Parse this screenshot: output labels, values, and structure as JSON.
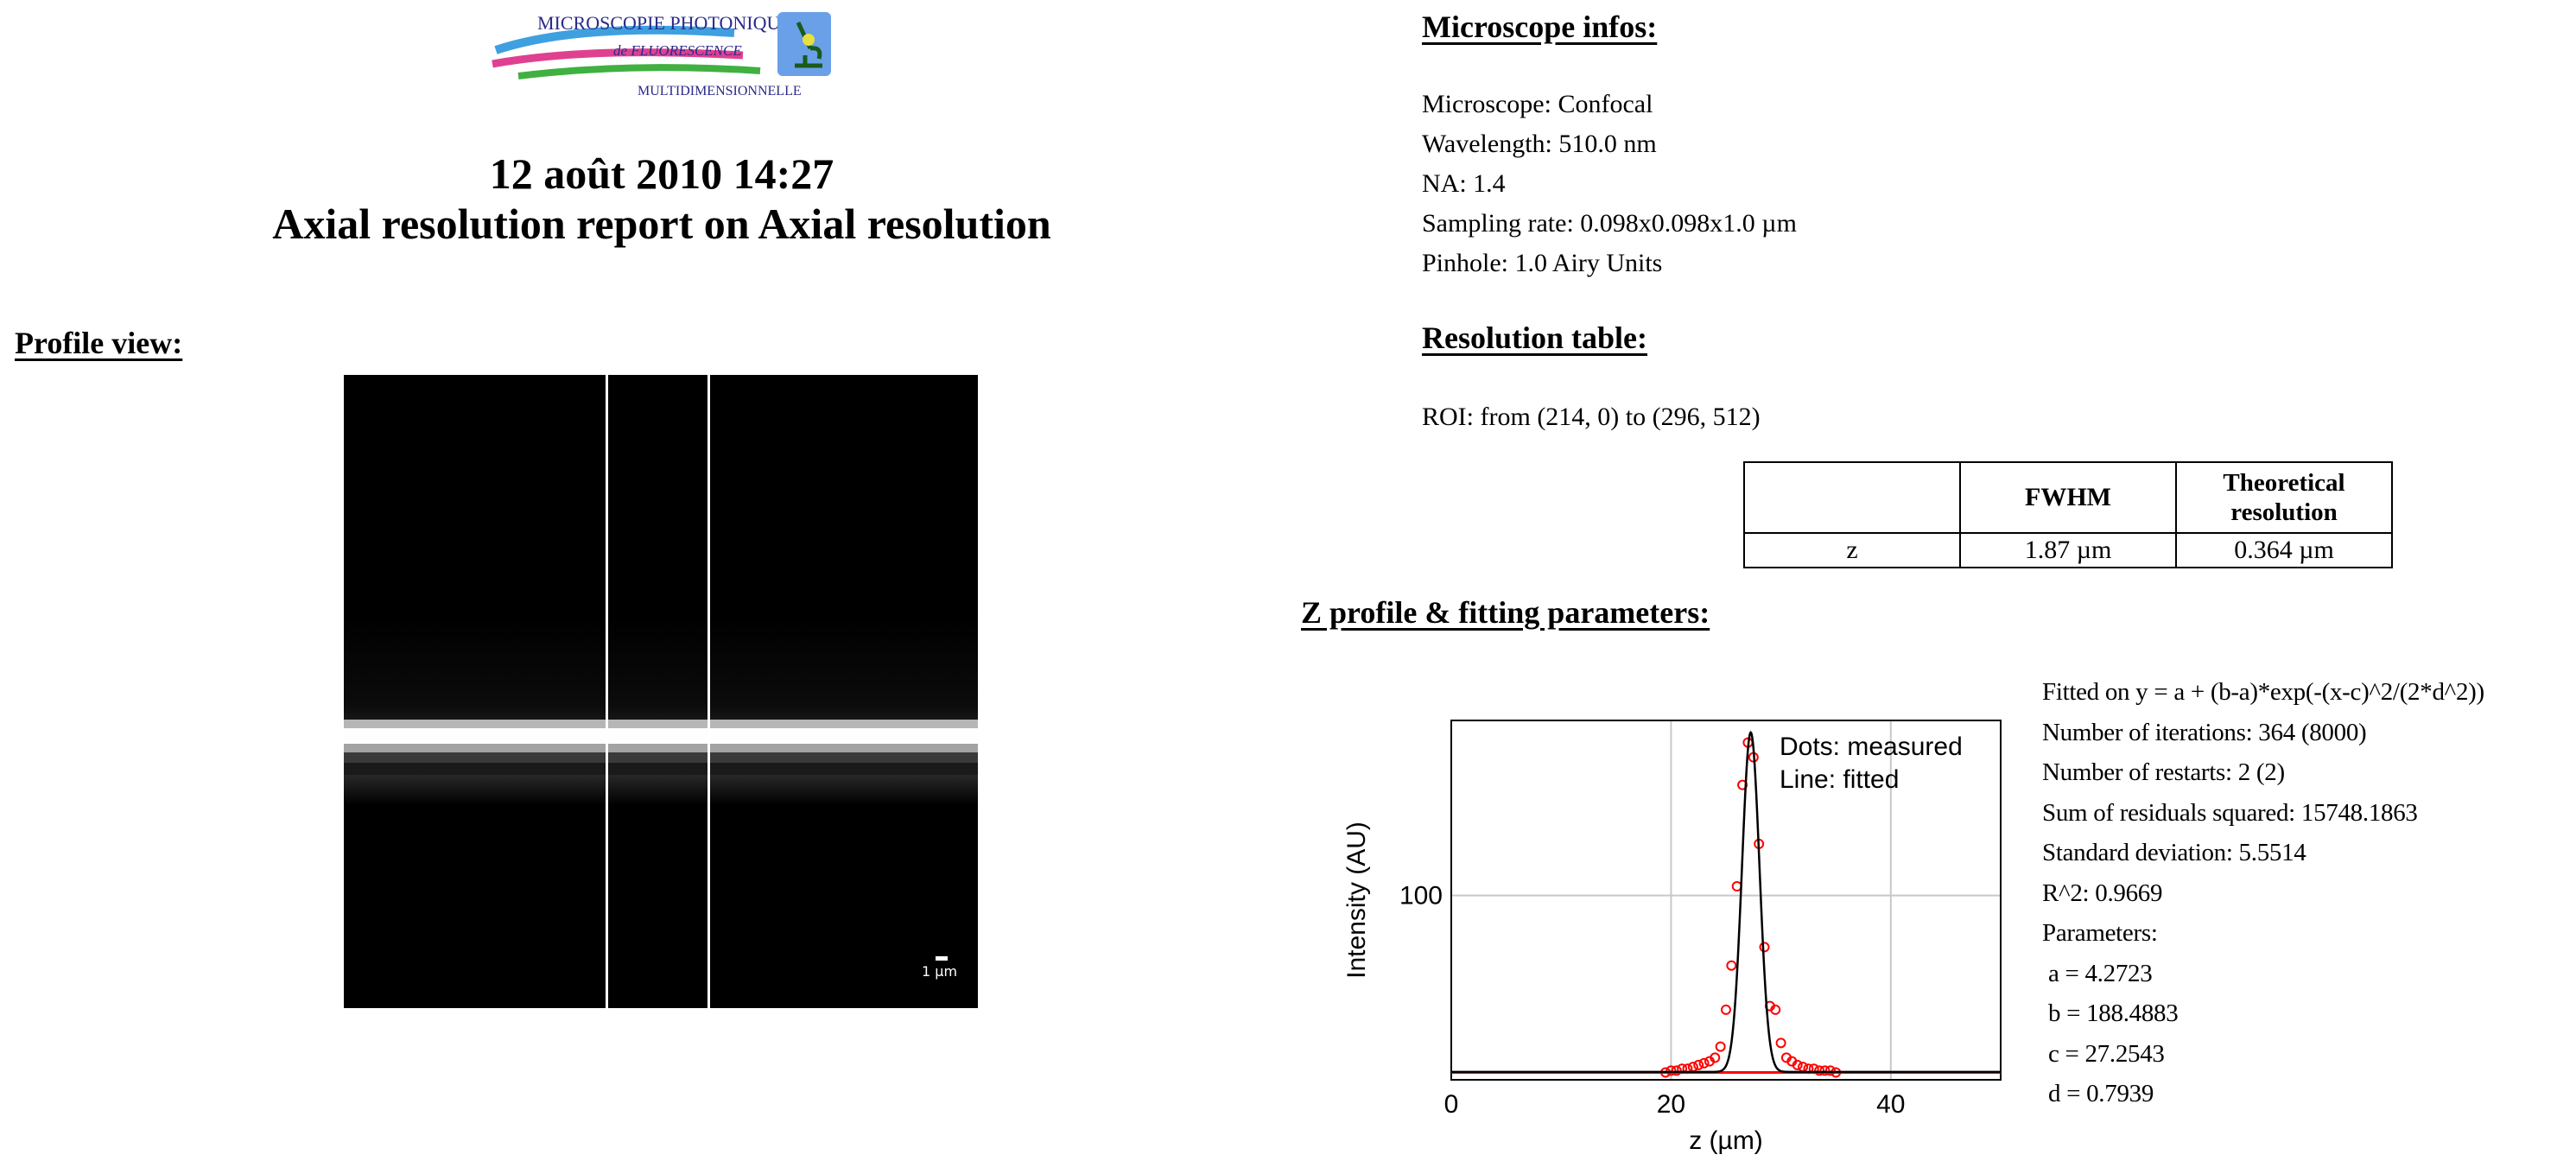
{
  "logo": {
    "line1": "MICROSCOPIE PHOTONIQUE",
    "line2": "de FLUORESCENCE",
    "line3": "MULTIDIMENSIONNELLE",
    "icon": "microscope-icon"
  },
  "report": {
    "date": "12 août 2010 14:27",
    "title": "Axial resolution report on Axial resolution"
  },
  "profile": {
    "header": "Profile view:",
    "scale_label": "1 µm"
  },
  "microscope": {
    "header": "Microscope infos:",
    "lines": [
      "Microscope: Confocal",
      "Wavelength: 510.0 nm",
      "NA: 1.4",
      "Sampling rate: 0.098x0.098x1.0 µm",
      "Pinhole: 1.0 Airy Units"
    ]
  },
  "resolution": {
    "header": "Resolution table:",
    "roi": "ROI: from (214, 0) to (296, 512)",
    "col_fwhm": "FWHM",
    "col_theo_1": "Theoretical",
    "col_theo_2": "resolution",
    "row_label": "z",
    "fwhm": "1.87 µm",
    "theoretical": "0.364 µm"
  },
  "zprofile": {
    "header": "Z profile & fitting parameters:"
  },
  "fit": {
    "lines": [
      "Fitted on y = a + (b-a)*exp(-(x-c)^2/(2*d^2))",
      "Number of iterations: 364 (8000)",
      "Number of restarts: 2 (2)",
      "Sum of residuals squared: 15748.1863",
      "Standard deviation: 5.5514",
      "R^2: 0.9669",
      "Parameters:",
      " a = 4.2723",
      " b = 188.4883",
      " c = 27.2543",
      " d = 0.7939"
    ]
  },
  "chart_data": {
    "type": "scatter",
    "xlabel": "z (µm)",
    "ylabel": "Intensity (AU)",
    "xlim": [
      0,
      50
    ],
    "ylim": [
      0,
      195
    ],
    "xticks": [
      0,
      20,
      40
    ],
    "yticks": [
      100
    ],
    "grid": true,
    "legend": [
      "Dots: measured",
      "Line: fitted"
    ],
    "legend_position": "top-right",
    "colors": {
      "measured": "#ff0000",
      "fitted": "#000000"
    },
    "fit_params": {
      "a": 4.2723,
      "b": 188.4883,
      "c": 27.2543,
      "d": 0.7939
    },
    "measured": {
      "x": [
        19.5,
        20.0,
        20.5,
        21.0,
        21.5,
        22.0,
        22.5,
        23.0,
        23.5,
        24.0,
        24.5,
        25.0,
        25.5,
        26.0,
        26.5,
        27.0,
        27.5,
        28.0,
        28.5,
        29.0,
        29.5,
        30.0,
        30.5,
        31.0,
        31.5,
        32.0,
        32.5,
        33.0,
        33.5,
        34.0,
        34.5,
        35.0
      ],
      "y": [
        4,
        5,
        5,
        6,
        6,
        7,
        8,
        9,
        10,
        12,
        18,
        38,
        62,
        105,
        160,
        183,
        175,
        128,
        72,
        40,
        38,
        20,
        12,
        10,
        8,
        7,
        6,
        6,
        5,
        5,
        5,
        4
      ]
    }
  }
}
